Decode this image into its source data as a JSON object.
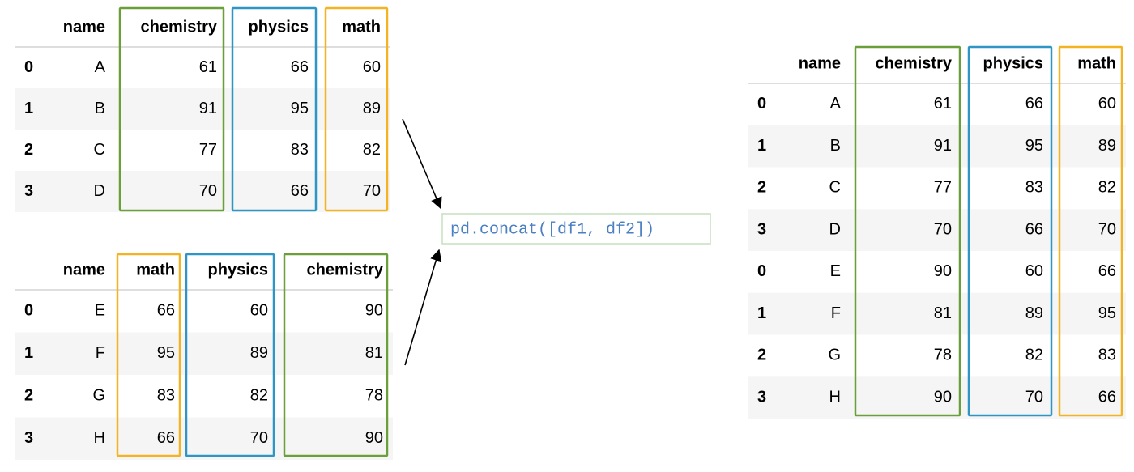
{
  "tables": [
    {
      "columns": [
        "name",
        "chemistry",
        "physics",
        "math"
      ],
      "rows": [
        [
          0,
          "A",
          61,
          66,
          60
        ],
        [
          1,
          "B",
          91,
          95,
          89
        ],
        [
          2,
          "C",
          77,
          83,
          82
        ],
        [
          3,
          "D",
          70,
          66,
          70
        ]
      ]
    },
    {
      "columns": [
        "name",
        "math",
        "physics",
        "chemistry"
      ],
      "rows": [
        [
          0,
          "E",
          66,
          60,
          90
        ],
        [
          1,
          "F",
          95,
          89,
          81
        ],
        [
          2,
          "G",
          83,
          82,
          78
        ],
        [
          3,
          "H",
          66,
          70,
          90
        ]
      ]
    },
    {
      "columns": [
        "name",
        "chemistry",
        "physics",
        "math"
      ],
      "rows": [
        [
          0,
          "A",
          61,
          66,
          60
        ],
        [
          1,
          "B",
          91,
          95,
          89
        ],
        [
          2,
          "C",
          77,
          83,
          82
        ],
        [
          3,
          "D",
          70,
          66,
          70
        ],
        [
          0,
          "E",
          90,
          60,
          66
        ],
        [
          1,
          "F",
          81,
          89,
          95
        ],
        [
          2,
          "G",
          78,
          82,
          83
        ],
        [
          3,
          "H",
          90,
          70,
          66
        ]
      ]
    }
  ],
  "code": "pd.concat([df1, df2])"
}
